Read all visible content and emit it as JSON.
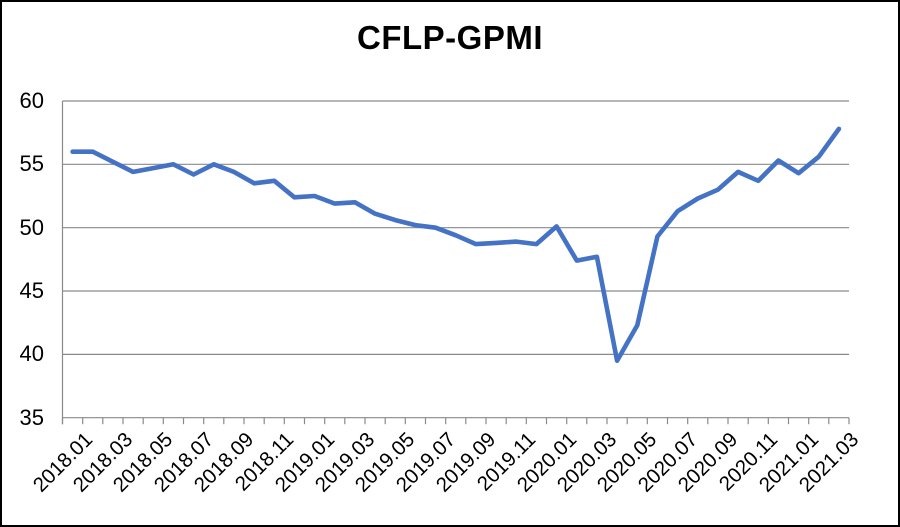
{
  "chart_data": {
    "type": "line",
    "title": "CFLP-GPMI",
    "xlabel": "",
    "ylabel": "",
    "x": [
      "2018.01",
      "2018.02",
      "2018.03",
      "2018.04",
      "2018.05",
      "2018.06",
      "2018.07",
      "2018.08",
      "2018.09",
      "2018.10",
      "2018.11",
      "2018.12",
      "2019.01",
      "2019.02",
      "2019.03",
      "2019.04",
      "2019.05",
      "2019.06",
      "2019.07",
      "2019.08",
      "2019.09",
      "2019.10",
      "2019.11",
      "2019.12",
      "2020.01",
      "2020.02",
      "2020.03",
      "2020.04",
      "2020.05",
      "2020.06",
      "2020.07",
      "2020.08",
      "2020.09",
      "2020.10",
      "2020.11",
      "2020.12",
      "2021.01",
      "2021.02",
      "2021.03"
    ],
    "values": [
      56.0,
      56.0,
      55.2,
      54.4,
      54.7,
      55.0,
      54.2,
      55.0,
      54.4,
      53.5,
      53.7,
      52.4,
      52.5,
      51.9,
      52.0,
      51.1,
      50.6,
      50.2,
      50.0,
      49.4,
      48.7,
      48.8,
      48.9,
      48.7,
      50.1,
      47.4,
      47.7,
      39.5,
      42.3,
      49.3,
      51.3,
      52.3,
      53.0,
      54.4,
      53.7,
      55.3,
      54.3,
      55.6,
      57.8
    ],
    "x_label_every": 2,
    "yticks": [
      60,
      55,
      50,
      45,
      40,
      35
    ],
    "ylim": [
      35,
      60
    ],
    "grid": true,
    "legend": "none",
    "line_color": "#4472C4"
  },
  "colors": {
    "line": "#4472C4",
    "grid": "#8a8a8a",
    "text": "#000000",
    "background": "#ffffff",
    "frame_border": "#000000"
  }
}
